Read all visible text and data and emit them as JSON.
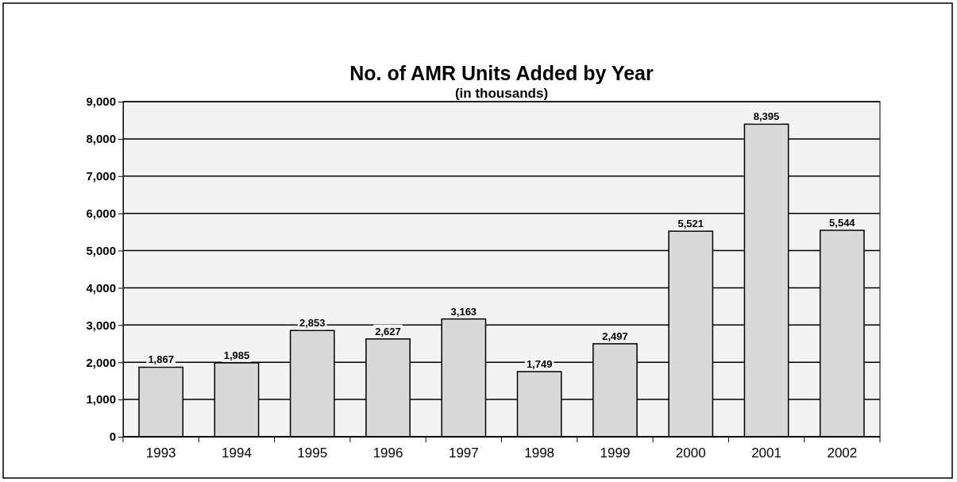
{
  "chart_data": {
    "type": "bar",
    "title": "No. of AMR Units Added by Year",
    "subtitle": "(in thousands)",
    "categories": [
      "1993",
      "1994",
      "1995",
      "1996",
      "1997",
      "1998",
      "1999",
      "2000",
      "2001",
      "2002"
    ],
    "values": [
      1867,
      1985,
      2853,
      2627,
      3163,
      1749,
      2497,
      5521,
      8395,
      5544
    ],
    "color": "#d9d9d9",
    "ylim": [
      0,
      9000
    ],
    "yticks": [
      {
        "value": 0,
        "label": "0"
      },
      {
        "value": 1000,
        "label": "1,000"
      },
      {
        "value": 2000,
        "label": "2,000"
      },
      {
        "value": 3000,
        "label": "3,000"
      },
      {
        "value": 4000,
        "label": "4,000"
      },
      {
        "value": 5000,
        "label": "5,000"
      },
      {
        "value": 6000,
        "label": "6,000"
      },
      {
        "value": 7000,
        "label": "7,000"
      },
      {
        "value": 8000,
        "label": "8,000"
      },
      {
        "value": 9000,
        "label": "9,000"
      }
    ],
    "value_labels": [
      "1,867",
      "1,985",
      "2,853",
      "2,627",
      "3,163",
      "1,749",
      "2,497",
      "5,521",
      "8,395",
      "5,544"
    ],
    "grid": "y"
  }
}
